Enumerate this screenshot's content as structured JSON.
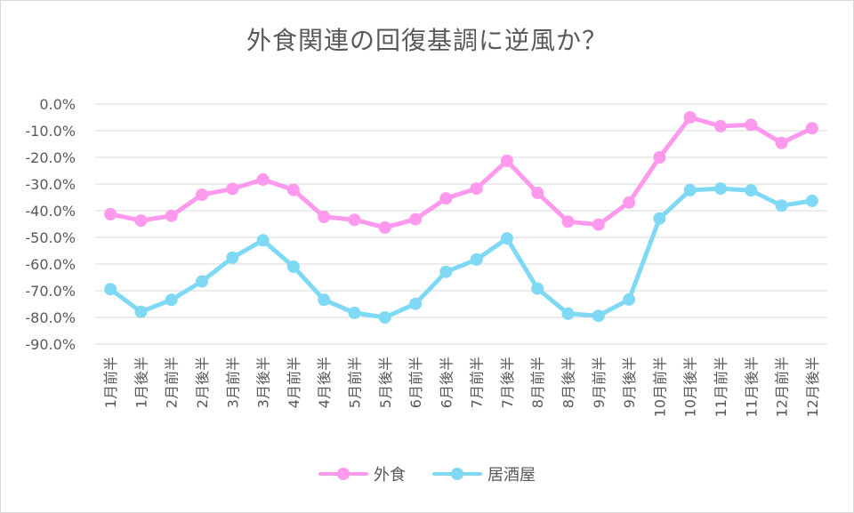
{
  "chart_data": {
    "type": "line",
    "title": "外食関連の回復基調に逆風か？",
    "xlabel": "",
    "ylabel": "",
    "ylim": [
      -90,
      0
    ],
    "yticks": [
      0,
      -10,
      -20,
      -30,
      -40,
      -50,
      -60,
      -70,
      -80,
      -90
    ],
    "ytick_labels": [
      "0.0%",
      "-10.0%",
      "-20.0%",
      "-30.0%",
      "-40.0%",
      "-50.0%",
      "-60.0%",
      "-70.0%",
      "-80.0%",
      "-90.0%"
    ],
    "categories": [
      "1月前半",
      "1月後半",
      "2月前半",
      "2月後半",
      "3月前半",
      "3月後半",
      "4月前半",
      "4月後半",
      "5月前半",
      "5月後半",
      "6月前半",
      "6月後半",
      "7月前半",
      "7月後半",
      "8月前半",
      "8月後半",
      "9月前半",
      "9月後半",
      "10月前半",
      "10月後半",
      "11月前半",
      "11月後半",
      "12月前半",
      "12月後半"
    ],
    "series": [
      {
        "name": "外食",
        "color": "#ff99ee",
        "values": [
          -41.3,
          -43.7,
          -41.9,
          -34.0,
          -31.8,
          -28.3,
          -32.2,
          -42.3,
          -43.4,
          -46.3,
          -43.2,
          -35.4,
          -31.7,
          -21.3,
          -33.3,
          -44.1,
          -45.2,
          -36.9,
          -20.0,
          -5.0,
          -8.3,
          -7.8,
          -14.6,
          -9.1
        ]
      },
      {
        "name": "居酒屋",
        "color": "#7fd9f5",
        "values": [
          -69.4,
          -77.9,
          -73.4,
          -66.5,
          -57.6,
          -51.1,
          -61.0,
          -73.4,
          -78.3,
          -80.0,
          -74.9,
          -62.9,
          -58.3,
          -50.4,
          -69.2,
          -78.6,
          -79.4,
          -73.3,
          -42.9,
          -32.3,
          -31.7,
          -32.4,
          -38.1,
          -36.3
        ]
      }
    ],
    "grid": true,
    "legend_position": "bottom"
  }
}
